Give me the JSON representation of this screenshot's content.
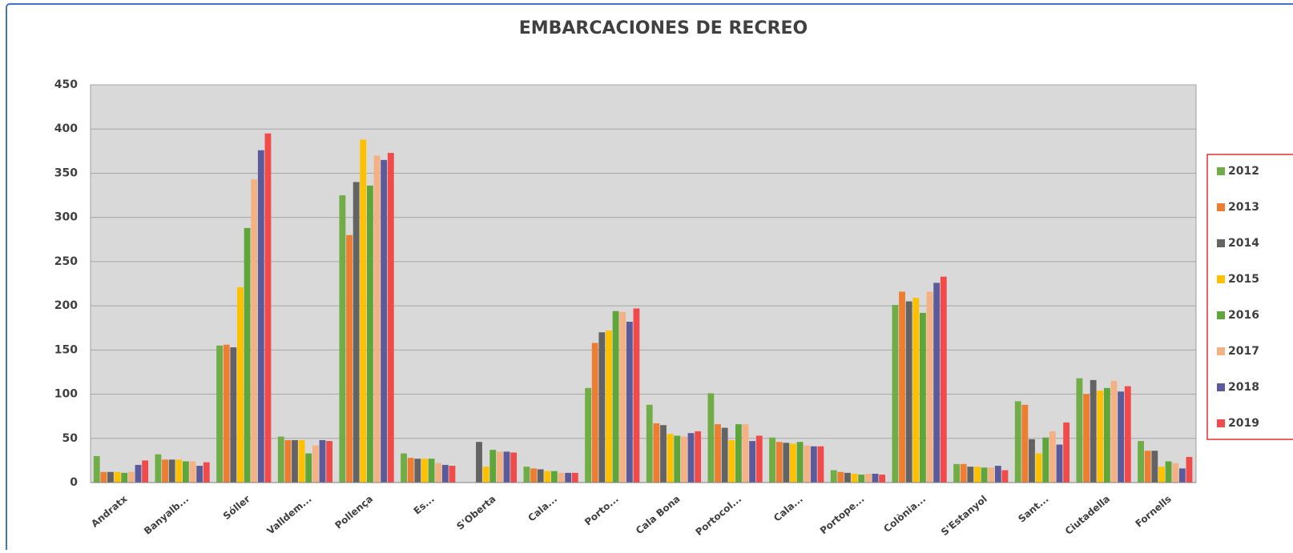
{
  "chart_data": {
    "type": "bar",
    "title": "EMBARCACIONES DE RECREO",
    "categories": [
      "Andratx",
      "Banyalb...",
      "Sóller",
      "Valldem...",
      "Pollença",
      "Es...",
      "S'Oberta",
      "Cala...",
      "Porto...",
      "Cala Bona",
      "Portocol...",
      "Cala...",
      "Portope...",
      "Colònia...",
      "S'Estanyol",
      "Sant...",
      "Ciutadella",
      "Fornells"
    ],
    "series": [
      {
        "name": "2012",
        "color": "#70ad47",
        "values": [
          30,
          32,
          155,
          52,
          325,
          33,
          null,
          18,
          107,
          88,
          101,
          51,
          14,
          201,
          21,
          92,
          118,
          47
        ]
      },
      {
        "name": "2013",
        "color": "#ed7d31",
        "values": [
          12,
          26,
          156,
          48,
          280,
          28,
          null,
          16,
          158,
          67,
          66,
          46,
          12,
          216,
          21,
          88,
          100,
          36
        ]
      },
      {
        "name": "2014",
        "color": "#636363",
        "values": [
          12,
          26,
          153,
          48,
          340,
          27,
          46,
          15,
          170,
          65,
          62,
          45,
          11,
          205,
          18,
          49,
          116,
          36
        ]
      },
      {
        "name": "2015",
        "color": "#ffc000",
        "values": [
          12,
          26,
          221,
          48,
          388,
          27,
          18,
          13,
          172,
          55,
          48,
          44,
          10,
          209,
          18,
          33,
          104,
          18
        ]
      },
      {
        "name": "2016",
        "color": "#5ea63a",
        "values": [
          11,
          24,
          288,
          33,
          336,
          27,
          37,
          13,
          194,
          53,
          66,
          46,
          9,
          192,
          17,
          51,
          107,
          24
        ]
      },
      {
        "name": "2017",
        "color": "#f4b183",
        "values": [
          12,
          24,
          343,
          42,
          370,
          22,
          35,
          11,
          193,
          52,
          66,
          42,
          10,
          216,
          17,
          58,
          115,
          22
        ]
      },
      {
        "name": "2018",
        "color": "#5b5b9b",
        "values": [
          20,
          19,
          376,
          48,
          365,
          20,
          35,
          11,
          182,
          56,
          47,
          41,
          10,
          226,
          19,
          43,
          103,
          16
        ]
      },
      {
        "name": "2019",
        "color": "#f04a4a",
        "values": [
          25,
          23,
          395,
          47,
          373,
          19,
          34,
          11,
          197,
          58,
          53,
          41,
          9,
          233,
          14,
          68,
          109,
          29
        ]
      }
    ],
    "ylim": [
      0,
      450
    ],
    "yticks": [
      0,
      50,
      100,
      150,
      200,
      250,
      300,
      350,
      400,
      450
    ],
    "grid": true
  }
}
